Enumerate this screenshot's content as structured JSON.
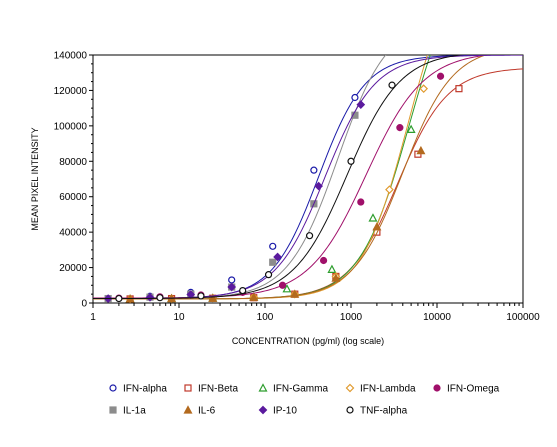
{
  "chart_data": {
    "type": "line",
    "xlabel": "CONCENTRATION (pg/ml) (log scale)",
    "ylabel": "MEAN PIXEL INTENSITY",
    "x_scale": "log",
    "xlim": [
      1,
      100000
    ],
    "ylim": [
      0,
      140000
    ],
    "x_ticks": [
      1,
      10,
      100,
      1000,
      10000,
      100000
    ],
    "x_tick_labels": [
      "1",
      "10",
      "100",
      "1000",
      "10000",
      "100000"
    ],
    "y_ticks": [
      0,
      20000,
      40000,
      60000,
      80000,
      100000,
      120000,
      140000
    ],
    "y_tick_labels": [
      "0",
      "20000",
      "40000",
      "60000",
      "80000",
      "100000",
      "120000",
      "140000"
    ],
    "grid": false,
    "legend_position": "bottom",
    "series": [
      {
        "name": "IFN-alpha",
        "color": "#1a1aa8",
        "marker": "circle-open",
        "x": [
          1.5,
          4.6,
          13.7,
          41,
          123,
          370,
          1111
        ],
        "y": [
          2500,
          3800,
          6000,
          13000,
          32000,
          75000,
          116000
        ],
        "fit": {
          "bottom": 2500,
          "top": 140000,
          "ec50": 420,
          "hill": 1.6
        }
      },
      {
        "name": "IFN-Beta",
        "color": "#c0392b",
        "marker": "square-open",
        "x": [
          2.7,
          8.2,
          24.7,
          74,
          222,
          667,
          2000,
          6000,
          18000
        ],
        "y": [
          2300,
          2500,
          2700,
          3000,
          5000,
          15000,
          40000,
          84000,
          121000
        ],
        "fit": {
          "bottom": 2300,
          "top": 133000,
          "ec50": 3500,
          "hill": 1.5
        }
      },
      {
        "name": "IFN-Gamma",
        "color": "#2e9e2e",
        "marker": "triangle-open",
        "x": [
          2.7,
          8.2,
          24.7,
          74,
          180,
          600,
          1800,
          5000
        ],
        "y": [
          2300,
          2500,
          2800,
          3500,
          8000,
          19000,
          48000,
          98000
        ],
        "fit": {
          "bottom": 2300,
          "top": 200000,
          "ec50": 4800,
          "hill": 1.5
        }
      },
      {
        "name": "IFN-Lambda",
        "color": "#e09a2e",
        "marker": "diamond-open",
        "x": [
          2.7,
          8.2,
          24.7,
          74,
          222,
          667,
          2800,
          7000
        ],
        "y": [
          2300,
          2500,
          2800,
          3300,
          5000,
          15000,
          64000,
          121000
        ],
        "fit": {
          "bottom": 2300,
          "top": 200000,
          "ec50": 4600,
          "hill": 1.6
        }
      },
      {
        "name": "IFN-Omega",
        "color": "#a0106a",
        "marker": "circle-filled",
        "x": [
          2,
          6,
          18,
          55,
          160,
          480,
          1300,
          3700,
          11000
        ],
        "y": [
          2800,
          3500,
          4500,
          6000,
          10000,
          24000,
          57000,
          99000,
          128000
        ],
        "fit": {
          "bottom": 2800,
          "top": 142000,
          "ec50": 1500,
          "hill": 1.3
        }
      },
      {
        "name": "IL-1a",
        "color": "#8c8c8c",
        "marker": "square-filled",
        "x": [
          1.5,
          4.6,
          13.7,
          41,
          123,
          370,
          1111
        ],
        "y": [
          2500,
          3300,
          5000,
          9000,
          23000,
          56000,
          106000
        ],
        "fit": {
          "bottom": 2500,
          "top": 160000,
          "ec50": 700,
          "hill": 1.5
        }
      },
      {
        "name": "IL-6",
        "color": "#b36a1f",
        "marker": "triangle-filled",
        "x": [
          2.7,
          8.2,
          24.7,
          74,
          222,
          667,
          2000,
          6500
        ],
        "y": [
          2300,
          2500,
          2700,
          3200,
          5000,
          14000,
          43000,
          86000
        ],
        "fit": {
          "bottom": 2300,
          "top": 145000,
          "ec50": 4000,
          "hill": 1.5
        }
      },
      {
        "name": "IP-10",
        "color": "#5b1a9e",
        "marker": "diamond-filled",
        "x": [
          1.5,
          4.6,
          13.7,
          41,
          140,
          420,
          1300
        ],
        "y": [
          2500,
          3200,
          4800,
          9000,
          26000,
          66000,
          112000
        ],
        "fit": {
          "bottom": 2500,
          "top": 140000,
          "ec50": 500,
          "hill": 1.5
        }
      },
      {
        "name": "TNF-alpha",
        "color": "#111111",
        "marker": "circle-open",
        "x": [
          2,
          6,
          18,
          55,
          110,
          330,
          1000,
          3000
        ],
        "y": [
          2500,
          3000,
          4000,
          7000,
          16000,
          38000,
          80000,
          123000
        ],
        "fit": {
          "bottom": 2500,
          "top": 142000,
          "ec50": 900,
          "hill": 1.4
        }
      }
    ]
  }
}
